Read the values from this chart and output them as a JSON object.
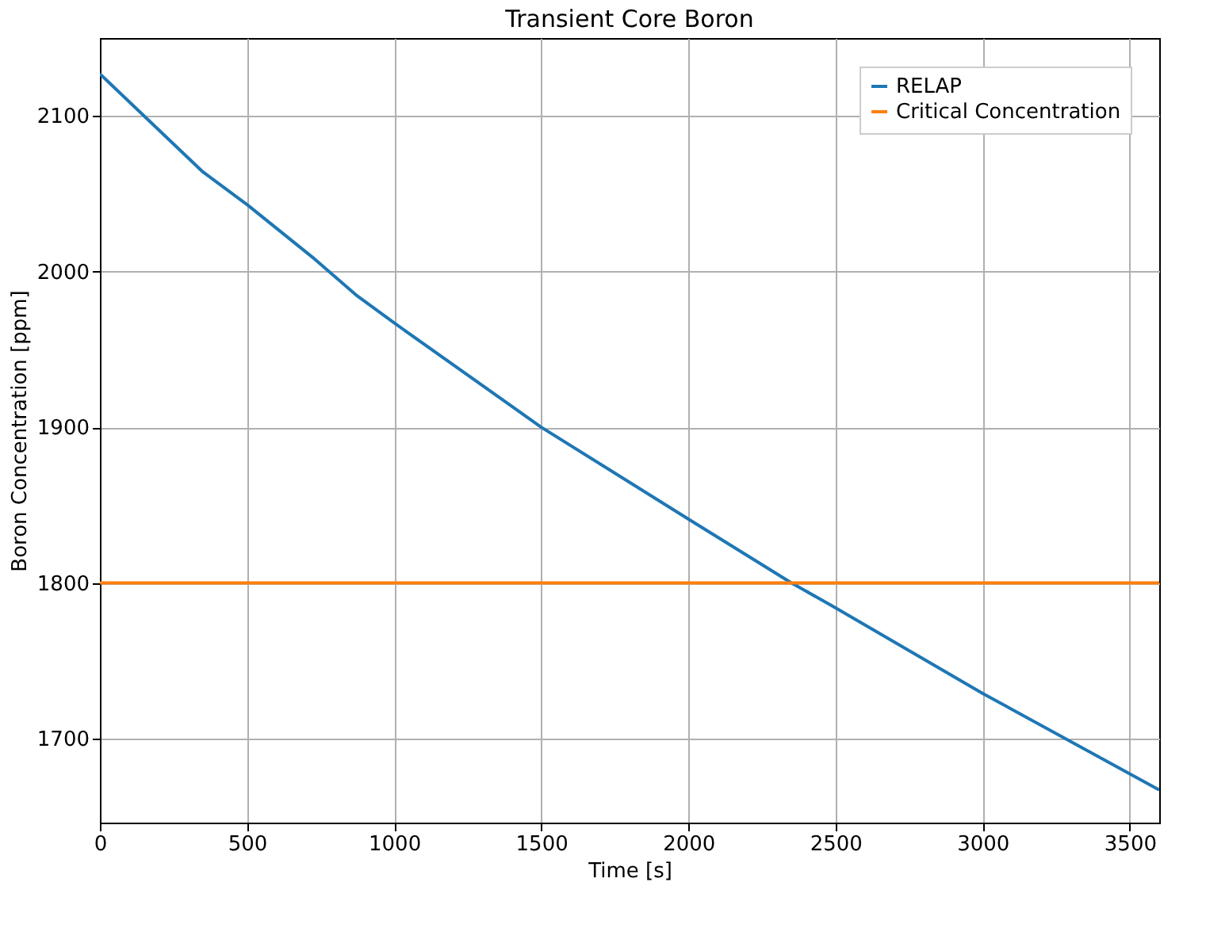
{
  "chart_data": {
    "type": "line",
    "title": "Transient Core Boron",
    "xlabel": "Time [s]",
    "ylabel": "Boron Concentration [ppm]",
    "xlim": [
      0,
      3600
    ],
    "xticks": [
      0,
      500,
      1000,
      1500,
      2000,
      2500,
      3000,
      3500
    ],
    "ylim": [
      1646,
      2150
    ],
    "yticks": [
      1700,
      1800,
      1900,
      2000,
      2100
    ],
    "grid": true,
    "legend": "top right",
    "marker": "none",
    "line_style": "solid",
    "series": [
      {
        "name": "RELAP",
        "color": "#1f77b4",
        "x": [
          0,
          350,
          500,
          730,
          870,
          1000,
          1500,
          2000,
          2350,
          2500,
          3000,
          3600
        ],
        "values": [
          2127,
          2064,
          2043,
          2008,
          1985,
          1967,
          1900,
          1841,
          1800,
          1784,
          1729,
          1667
        ]
      },
      {
        "name": "Critical Concentration",
        "color": "#ff7f0e",
        "x": [
          0,
          3600
        ],
        "values": [
          1800,
          1800
        ]
      }
    ]
  }
}
